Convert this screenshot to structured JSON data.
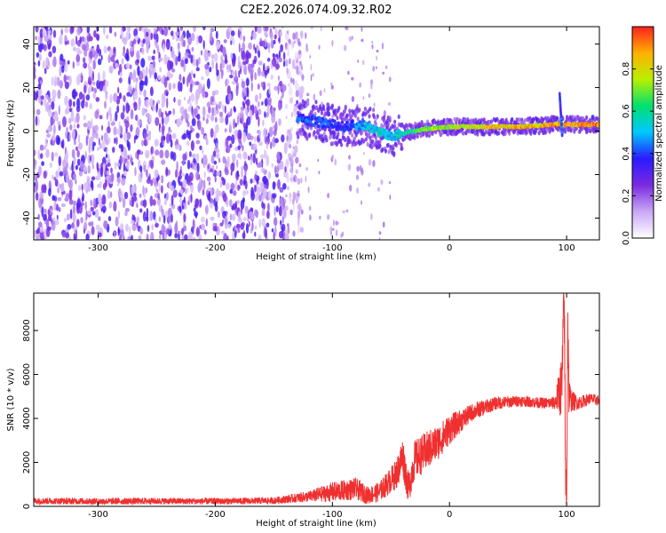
{
  "title": "C2E2.2026.074.09.32.R02",
  "chart_data": [
    {
      "type": "heatmap",
      "xlabel": "Height of straight line (km)",
      "ylabel": "Frequency (Hz)",
      "xlim": [
        -355,
        128
      ],
      "ylim": [
        -50,
        48
      ],
      "xticks": [
        -300,
        -200,
        -100,
        0,
        100
      ],
      "yticks": [
        -40,
        -20,
        0,
        20,
        40
      ],
      "colorbar": {
        "label": "Normalized spectral amplitude",
        "range": [
          0,
          1
        ],
        "ticks": [
          0.0,
          0.2,
          0.4,
          0.6,
          0.8
        ],
        "colormap": [
          "#ffffff",
          "#c9a8f5",
          "#7b2be0",
          "#2a1aff",
          "#00c8ff",
          "#00e070",
          "#b8f000",
          "#ffb000",
          "#ff2020"
        ]
      },
      "ridge": {
        "description": "spectral ridge near 0-5 Hz",
        "x": [
          -130,
          -110,
          -90,
          -75,
          -60,
          -50,
          -40,
          -20,
          0,
          20,
          60,
          90,
          100,
          128
        ],
        "y": [
          6,
          4,
          2,
          3,
          0,
          -3,
          -1,
          1,
          2,
          2,
          2,
          3,
          3,
          3
        ],
        "amplitude": [
          0.45,
          0.45,
          0.4,
          0.5,
          0.6,
          0.55,
          0.6,
          0.75,
          0.8,
          0.85,
          0.9,
          0.95,
          0.9,
          1.0
        ]
      },
      "noise_region_x": [
        -355,
        -140
      ]
    },
    {
      "type": "line",
      "xlabel": "Height of straight line (km)",
      "ylabel": "SNR (10 * v/v)",
      "xlim": [
        -355,
        128
      ],
      "ylim": [
        0,
        9700
      ],
      "xticks": [
        -300,
        -200,
        -100,
        0,
        100
      ],
      "yticks": [
        0,
        2000,
        4000,
        6000,
        8000
      ],
      "series": [
        {
          "name": "SNR",
          "color": "#f03030",
          "x": [
            -355,
            -300,
            -250,
            -200,
            -150,
            -120,
            -100,
            -80,
            -70,
            -60,
            -50,
            -45,
            -40,
            -35,
            -30,
            -20,
            -10,
            0,
            10,
            20,
            30,
            40,
            60,
            80,
            90,
            96,
            98,
            99,
            100,
            101,
            102,
            104,
            110,
            120,
            128
          ],
          "y": [
            250,
            230,
            240,
            230,
            260,
            450,
            650,
            800,
            500,
            650,
            1200,
            1500,
            2300,
            800,
            2100,
            2500,
            2900,
            3500,
            3900,
            4300,
            4500,
            4700,
            4800,
            4700,
            4700,
            5500,
            9700,
            1500,
            600,
            8500,
            5000,
            4800,
            4700,
            4900,
            4800
          ],
          "noise_amplitude": [
            150,
            150,
            150,
            150,
            150,
            250,
            450,
            500,
            400,
            450,
            600,
            700,
            900,
            700,
            900,
            900,
            800,
            700,
            500,
            400,
            350,
            300,
            250,
            250,
            300,
            1500,
            1500,
            1500,
            1000,
            1500,
            1000,
            500,
            300,
            250,
            250
          ]
        }
      ]
    }
  ]
}
